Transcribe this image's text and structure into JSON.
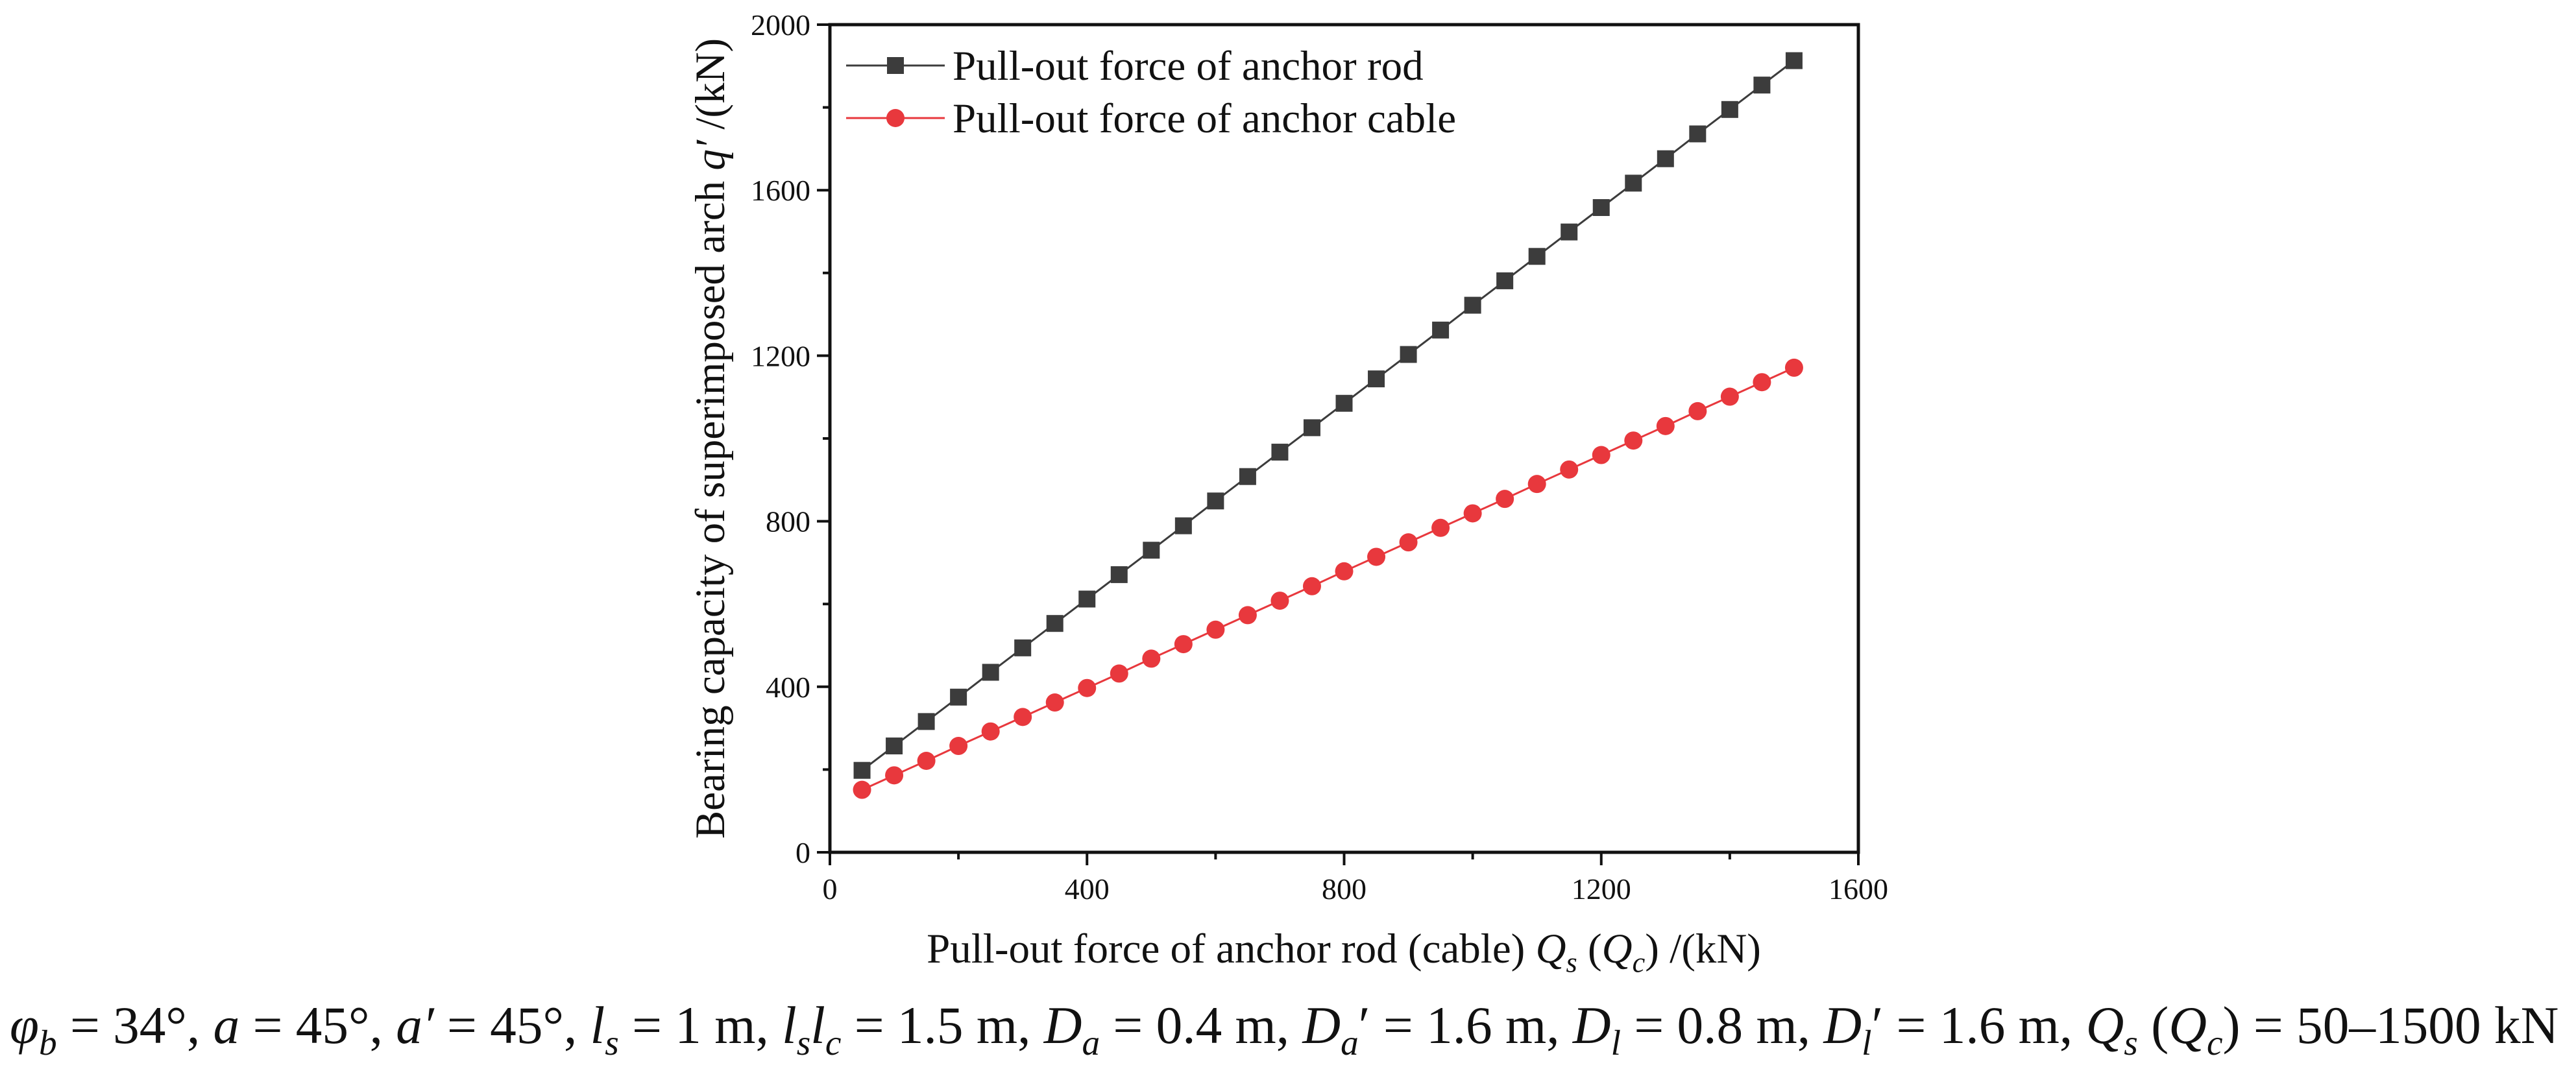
{
  "chart_data": {
    "type": "line",
    "title": "",
    "x": [
      50,
      100,
      150,
      200,
      250,
      300,
      350,
      400,
      450,
      500,
      550,
      600,
      650,
      700,
      750,
      800,
      850,
      900,
      950,
      1000,
      1050,
      1100,
      1150,
      1200,
      1250,
      1300,
      1350,
      1400,
      1450,
      1500
    ],
    "series": [
      {
        "name": "Pull-out force of anchor rod",
        "color": "#3c3c3c",
        "marker": "square",
        "values": [
          198,
          257,
          316,
          375,
          435,
          494,
          553,
          612,
          671,
          730,
          789,
          849,
          908,
          967,
          1026,
          1085,
          1144,
          1203,
          1262,
          1322,
          1381,
          1440,
          1499,
          1558,
          1617,
          1676,
          1736,
          1795,
          1854,
          1913
        ]
      },
      {
        "name": "Pull-out force of anchor cable",
        "color": "#e8383d",
        "marker": "circle",
        "values": [
          151,
          186,
          221,
          257,
          292,
          327,
          362,
          397,
          432,
          468,
          503,
          538,
          573,
          608,
          643,
          679,
          714,
          749,
          784,
          819,
          854,
          890,
          925,
          960,
          995,
          1030,
          1066,
          1101,
          1136,
          1171
        ]
      }
    ],
    "xlabel": [
      {
        "t": "Pull-out force of anchor rod (cable) "
      },
      {
        "t": "Q",
        "it": true
      },
      {
        "t": "s",
        "it": true,
        "sub": true
      },
      {
        "t": " ("
      },
      {
        "t": "Q",
        "it": true
      },
      {
        "t": "c",
        "it": true,
        "sub": true
      },
      {
        "t": ") /(kN)"
      }
    ],
    "ylabel": [
      {
        "t": "Bearing capacity of superimposed arch "
      },
      {
        "t": "q′",
        "it": true
      },
      {
        "t": " /(kN)"
      }
    ],
    "xlim": [
      0,
      1600
    ],
    "ylim": [
      0,
      2000
    ],
    "x_ticks": [
      0,
      400,
      800,
      1200,
      1600
    ],
    "y_ticks": [
      0,
      400,
      800,
      1200,
      1600,
      2000
    ],
    "grid": false,
    "legend_position": "top-left"
  },
  "caption": [
    {
      "t": "φ",
      "it": true
    },
    {
      "t": "b",
      "it": true,
      "sub": true
    },
    {
      "t": " = 34°, "
    },
    {
      "t": "a",
      "it": true
    },
    {
      "t": " = 45°, "
    },
    {
      "t": "a′",
      "it": true
    },
    {
      "t": " = 45°, "
    },
    {
      "t": "l",
      "it": true
    },
    {
      "t": "s",
      "it": true,
      "sub": true
    },
    {
      "t": " = 1 m, "
    },
    {
      "t": "l",
      "it": true
    },
    {
      "t": "s",
      "it": true,
      "sub": true
    },
    {
      "t": "l",
      "it": true
    },
    {
      "t": "c",
      "it": true,
      "sub": true
    },
    {
      "t": " = 1.5 m, "
    },
    {
      "t": "D",
      "it": true
    },
    {
      "t": "a",
      "it": true,
      "sub": true
    },
    {
      "t": " = 0.4 m, "
    },
    {
      "t": "D",
      "it": true
    },
    {
      "t": "a",
      "it": true,
      "sub": true
    },
    {
      "t": "′ = 1.6 m, "
    },
    {
      "t": "D",
      "it": true
    },
    {
      "t": "l",
      "it": true,
      "sub": true
    },
    {
      "t": " = 0.8 m, "
    },
    {
      "t": "D",
      "it": true
    },
    {
      "t": "l",
      "it": true,
      "sub": true
    },
    {
      "t": "′ = 1.6 m, "
    },
    {
      "t": "Q",
      "it": true
    },
    {
      "t": "s",
      "it": true,
      "sub": true
    },
    {
      "t": " ("
    },
    {
      "t": "Q",
      "it": true
    },
    {
      "t": "c",
      "it": true,
      "sub": true
    },
    {
      "t": ") = 50–1500 kN"
    }
  ]
}
